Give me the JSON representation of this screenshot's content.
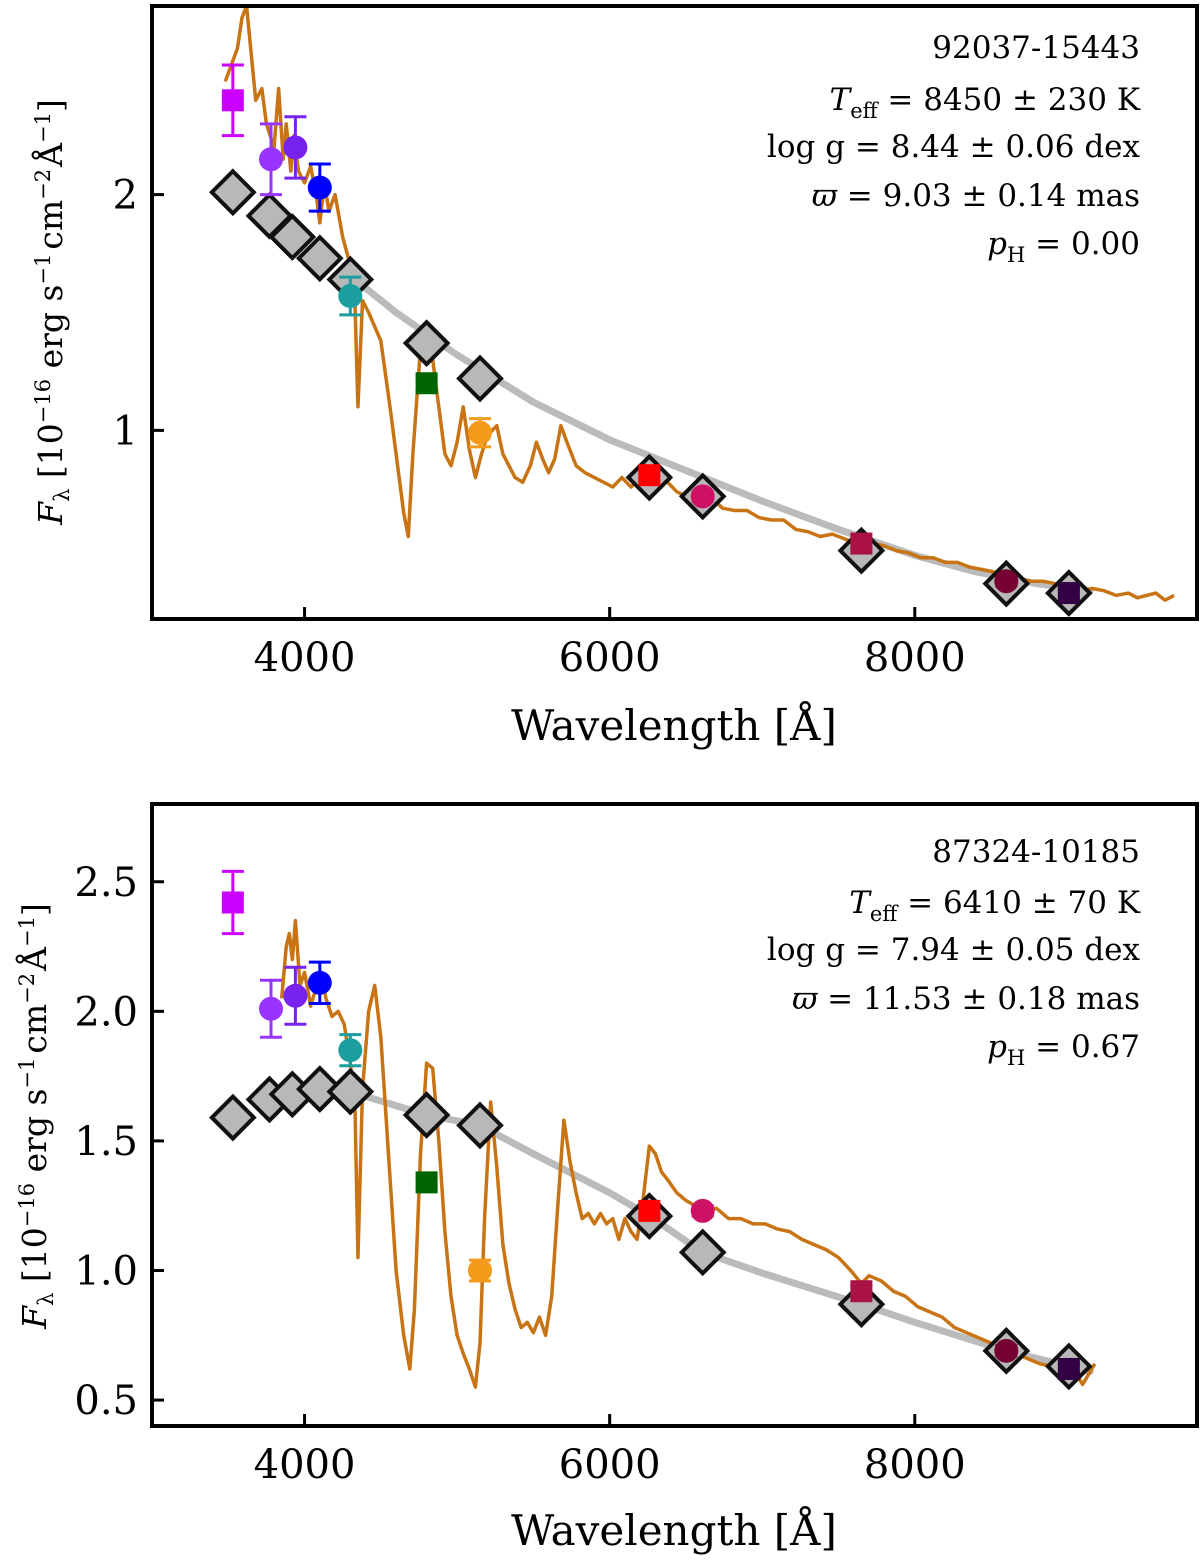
{
  "chart_data": [
    {
      "type": "scatter",
      "id": "top",
      "annotation": {
        "name": "92037-15443",
        "teff": "8450 ± 230 K",
        "logg": "8.44 ± 0.06 dex",
        "plx": "9.03 ± 0.14 mas",
        "ph": "0.00"
      },
      "xlabel": "Wavelength [Å]",
      "ylabel": {
        "main": "F",
        "sub": "λ",
        "bracket": " [10",
        "exp": "−16",
        "units": " erg s",
        "e1": "−1",
        "cm": "cm",
        "e2": "−2",
        "A": "Å",
        "e3": "−1",
        "close": "]"
      },
      "xlim": [
        3000,
        9850
      ],
      "ylim": [
        0.2,
        2.8
      ],
      "xticks": [
        4000,
        6000,
        8000
      ],
      "xtick_labels": [
        "4000",
        "6000",
        "8000"
      ],
      "yticks": [
        1,
        2
      ],
      "ytick_labels": [
        "1",
        "2"
      ],
      "spectrum": [
        [
          3480,
          2.48
        ],
        [
          3560,
          2.62
        ],
        [
          3590,
          2.75
        ],
        [
          3620,
          2.8
        ],
        [
          3650,
          2.6
        ],
        [
          3680,
          2.4
        ],
        [
          3720,
          2.45
        ],
        [
          3750,
          2.3
        ],
        [
          3800,
          2.2
        ],
        [
          3830,
          2.45
        ],
        [
          3860,
          2.15
        ],
        [
          3880,
          2.3
        ],
        [
          3910,
          2.1
        ],
        [
          3930,
          2.25
        ],
        [
          3960,
          2.1
        ],
        [
          4000,
          2.05
        ],
        [
          4040,
          2.12
        ],
        [
          4080,
          1.98
        ],
        [
          4100,
          1.88
        ],
        [
          4130,
          2.05
        ],
        [
          4160,
          1.93
        ],
        [
          4200,
          2.0
        ],
        [
          4250,
          1.82
        ],
        [
          4300,
          1.7
        ],
        [
          4330,
          1.55
        ],
        [
          4350,
          1.1
        ],
        [
          4380,
          1.55
        ],
        [
          4420,
          1.5
        ],
        [
          4500,
          1.38
        ],
        [
          4560,
          1.1
        ],
        [
          4610,
          0.85
        ],
        [
          4650,
          0.65
        ],
        [
          4680,
          0.55
        ],
        [
          4710,
          0.9
        ],
        [
          4760,
          1.35
        ],
        [
          4800,
          1.38
        ],
        [
          4840,
          1.3
        ],
        [
          4880,
          1.1
        ],
        [
          4920,
          0.9
        ],
        [
          4960,
          0.85
        ],
        [
          5000,
          0.95
        ],
        [
          5040,
          1.1
        ],
        [
          5080,
          0.92
        ],
        [
          5120,
          0.8
        ],
        [
          5160,
          0.9
        ],
        [
          5200,
          0.98
        ],
        [
          5260,
          1.02
        ],
        [
          5300,
          0.9
        ],
        [
          5380,
          0.8
        ],
        [
          5430,
          0.78
        ],
        [
          5480,
          0.85
        ],
        [
          5520,
          0.95
        ],
        [
          5560,
          0.88
        ],
        [
          5600,
          0.82
        ],
        [
          5640,
          0.88
        ],
        [
          5680,
          1.02
        ],
        [
          5720,
          0.95
        ],
        [
          5780,
          0.85
        ],
        [
          5840,
          0.82
        ],
        [
          5900,
          0.8
        ],
        [
          5960,
          0.78
        ],
        [
          6020,
          0.76
        ],
        [
          6080,
          0.8
        ],
        [
          6140,
          0.76
        ],
        [
          6200,
          0.8
        ],
        [
          6260,
          0.76
        ],
        [
          6320,
          0.8
        ],
        [
          6380,
          0.78
        ],
        [
          6440,
          0.74
        ],
        [
          6500,
          0.72
        ],
        [
          6560,
          0.73
        ],
        [
          6600,
          0.7
        ],
        [
          6660,
          0.72
        ],
        [
          6740,
          0.67
        ],
        [
          6820,
          0.66
        ],
        [
          6900,
          0.66
        ],
        [
          6980,
          0.63
        ],
        [
          7060,
          0.62
        ],
        [
          7140,
          0.62
        ],
        [
          7220,
          0.58
        ],
        [
          7300,
          0.57
        ],
        [
          7380,
          0.55
        ],
        [
          7460,
          0.56
        ],
        [
          7540,
          0.54
        ],
        [
          7620,
          0.52
        ],
        [
          7700,
          0.48
        ],
        [
          7740,
          0.52
        ],
        [
          7800,
          0.51
        ],
        [
          7880,
          0.49
        ],
        [
          7960,
          0.48
        ],
        [
          8040,
          0.46
        ],
        [
          8120,
          0.46
        ],
        [
          8200,
          0.44
        ],
        [
          8280,
          0.44
        ],
        [
          8360,
          0.42
        ],
        [
          8440,
          0.41
        ],
        [
          8520,
          0.4
        ],
        [
          8600,
          0.38
        ],
        [
          8680,
          0.37
        ],
        [
          8760,
          0.36
        ],
        [
          8840,
          0.36
        ],
        [
          8920,
          0.35
        ],
        [
          9000,
          0.33
        ],
        [
          9080,
          0.31
        ],
        [
          9160,
          0.33
        ],
        [
          9240,
          0.32
        ],
        [
          9320,
          0.3
        ],
        [
          9400,
          0.31
        ],
        [
          9460,
          0.29
        ],
        [
          9520,
          0.3
        ],
        [
          9580,
          0.31
        ],
        [
          9640,
          0.28
        ],
        [
          9700,
          0.3
        ]
      ],
      "model_curve": [
        [
          4350,
          1.63
        ],
        [
          4600,
          1.5
        ],
        [
          5000,
          1.32
        ],
        [
          5500,
          1.12
        ],
        [
          6000,
          0.96
        ],
        [
          6500,
          0.83
        ],
        [
          7000,
          0.7
        ],
        [
          7500,
          0.58
        ],
        [
          8000,
          0.47
        ],
        [
          8400,
          0.4
        ],
        [
          8800,
          0.35
        ],
        [
          9150,
          0.32
        ]
      ],
      "model_points": [
        [
          3530,
          2.01
        ],
        [
          3770,
          1.91
        ],
        [
          3920,
          1.82
        ],
        [
          4100,
          1.73
        ],
        [
          4300,
          1.64
        ],
        [
          4800,
          1.37
        ],
        [
          5150,
          1.22
        ],
        [
          6260,
          0.8
        ],
        [
          6610,
          0.72
        ],
        [
          7650,
          0.49
        ],
        [
          8600,
          0.35
        ],
        [
          9010,
          0.31
        ]
      ],
      "observations": [
        {
          "x": 3530,
          "y": 2.4,
          "err": 0.15,
          "marker": "square",
          "color": "#cc00ff"
        },
        {
          "x": 3780,
          "y": 2.15,
          "err": 0.15,
          "marker": "circle",
          "color": "#9933ff"
        },
        {
          "x": 3940,
          "y": 2.2,
          "err": 0.13,
          "marker": "circle",
          "color": "#7722ee"
        },
        {
          "x": 4100,
          "y": 2.03,
          "err": 0.1,
          "marker": "circle",
          "color": "#0000ff"
        },
        {
          "x": 4300,
          "y": 1.57,
          "err": 0.08,
          "marker": "circle",
          "color": "#1b9e9e"
        },
        {
          "x": 4800,
          "y": 1.2,
          "err": 0.03,
          "marker": "square",
          "color": "#006400"
        },
        {
          "x": 5150,
          "y": 0.99,
          "err": 0.06,
          "marker": "circle",
          "color": "#f59a1a"
        },
        {
          "x": 6260,
          "y": 0.81,
          "err": 0.02,
          "marker": "square",
          "color": "#ff0000"
        },
        {
          "x": 6610,
          "y": 0.72,
          "err": 0.02,
          "marker": "circle",
          "color": "#cc1166"
        },
        {
          "x": 7650,
          "y": 0.52,
          "err": 0.02,
          "marker": "square",
          "color": "#aa1144"
        },
        {
          "x": 8600,
          "y": 0.36,
          "err": 0.02,
          "marker": "circle",
          "color": "#770033"
        },
        {
          "x": 9010,
          "y": 0.31,
          "err": 0.02,
          "marker": "square",
          "color": "#330044"
        }
      ]
    },
    {
      "type": "scatter",
      "id": "bottom",
      "annotation": {
        "name": "87324-10185",
        "teff": "6410 ± 70 K",
        "logg": "7.94 ± 0.05 dex",
        "plx": "11.53 ± 0.18 mas",
        "ph": "0.67"
      },
      "xlabel": "Wavelength [Å]",
      "ylabel": {
        "main": "F",
        "sub": "λ",
        "bracket": " [10",
        "exp": "−16",
        "units": " erg s",
        "e1": "−1",
        "cm": "cm",
        "e2": "−2",
        "A": "Å",
        "e3": "−1",
        "close": "]"
      },
      "xlim": [
        3000,
        9850
      ],
      "ylim": [
        0.4,
        2.8
      ],
      "xticks": [
        4000,
        6000,
        8000
      ],
      "xtick_labels": [
        "4000",
        "6000",
        "8000"
      ],
      "yticks": [
        0.5,
        1.0,
        1.5,
        2.0,
        2.5
      ],
      "ytick_labels": [
        "0.5",
        "1.0",
        "1.5",
        "2.0",
        "2.5"
      ],
      "spectrum": [
        [
          3850,
          2.05
        ],
        [
          3880,
          2.25
        ],
        [
          3900,
          2.3
        ],
        [
          3920,
          2.2
        ],
        [
          3940,
          2.35
        ],
        [
          3970,
          2.1
        ],
        [
          4000,
          2.15
        ],
        [
          4040,
          2.02
        ],
        [
          4080,
          2.1
        ],
        [
          4110,
          2.15
        ],
        [
          4140,
          2.05
        ],
        [
          4180,
          1.98
        ],
        [
          4220,
          2.0
        ],
        [
          4260,
          1.95
        ],
        [
          4300,
          1.8
        ],
        [
          4330,
          1.65
        ],
        [
          4350,
          1.05
        ],
        [
          4380,
          1.7
        ],
        [
          4420,
          2.0
        ],
        [
          4460,
          2.1
        ],
        [
          4500,
          1.9
        ],
        [
          4550,
          1.45
        ],
        [
          4600,
          1.0
        ],
        [
          4650,
          0.75
        ],
        [
          4690,
          0.62
        ],
        [
          4720,
          0.85
        ],
        [
          4760,
          1.45
        ],
        [
          4800,
          1.8
        ],
        [
          4840,
          1.78
        ],
        [
          4880,
          1.5
        ],
        [
          4920,
          1.15
        ],
        [
          4960,
          0.9
        ],
        [
          5000,
          0.75
        ],
        [
          5040,
          0.68
        ],
        [
          5080,
          0.62
        ],
        [
          5120,
          0.55
        ],
        [
          5150,
          0.72
        ],
        [
          5180,
          1.2
        ],
        [
          5220,
          1.65
        ],
        [
          5260,
          1.4
        ],
        [
          5300,
          1.1
        ],
        [
          5340,
          0.95
        ],
        [
          5380,
          0.85
        ],
        [
          5420,
          0.78
        ],
        [
          5460,
          0.8
        ],
        [
          5500,
          0.76
        ],
        [
          5540,
          0.82
        ],
        [
          5580,
          0.75
        ],
        [
          5620,
          0.9
        ],
        [
          5660,
          1.25
        ],
        [
          5700,
          1.58
        ],
        [
          5740,
          1.42
        ],
        [
          5780,
          1.3
        ],
        [
          5820,
          1.2
        ],
        [
          5860,
          1.22
        ],
        [
          5900,
          1.18
        ],
        [
          5940,
          1.22
        ],
        [
          5980,
          1.18
        ],
        [
          6020,
          1.2
        ],
        [
          6060,
          1.12
        ],
        [
          6100,
          1.2
        ],
        [
          6140,
          1.15
        ],
        [
          6180,
          1.12
        ],
        [
          6220,
          1.28
        ],
        [
          6260,
          1.48
        ],
        [
          6300,
          1.45
        ],
        [
          6340,
          1.38
        ],
        [
          6380,
          1.35
        ],
        [
          6440,
          1.3
        ],
        [
          6500,
          1.27
        ],
        [
          6560,
          1.25
        ],
        [
          6620,
          1.23
        ],
        [
          6700,
          1.24
        ],
        [
          6780,
          1.2
        ],
        [
          6860,
          1.2
        ],
        [
          6940,
          1.18
        ],
        [
          7020,
          1.18
        ],
        [
          7100,
          1.16
        ],
        [
          7180,
          1.15
        ],
        [
          7260,
          1.12
        ],
        [
          7340,
          1.1
        ],
        [
          7420,
          1.08
        ],
        [
          7500,
          1.05
        ],
        [
          7580,
          1.0
        ],
        [
          7650,
          0.95
        ],
        [
          7700,
          0.98
        ],
        [
          7780,
          0.96
        ],
        [
          7860,
          0.92
        ],
        [
          7940,
          0.9
        ],
        [
          8020,
          0.86
        ],
        [
          8100,
          0.84
        ],
        [
          8180,
          0.82
        ],
        [
          8260,
          0.78
        ],
        [
          8340,
          0.76
        ],
        [
          8420,
          0.74
        ],
        [
          8500,
          0.72
        ],
        [
          8580,
          0.7
        ],
        [
          8660,
          0.68
        ],
        [
          8740,
          0.66
        ],
        [
          8820,
          0.64
        ],
        [
          8900,
          0.63
        ],
        [
          8980,
          0.62
        ],
        [
          9060,
          0.6
        ],
        [
          9100,
          0.56
        ],
        [
          9140,
          0.6
        ],
        [
          9180,
          0.64
        ]
      ],
      "model_curve": [
        [
          4300,
          1.69
        ],
        [
          4800,
          1.6
        ],
        [
          5150,
          1.56
        ],
        [
          5500,
          1.45
        ],
        [
          6000,
          1.3
        ],
        [
          6260,
          1.21
        ],
        [
          6610,
          1.07
        ],
        [
          7000,
          0.99
        ],
        [
          7650,
          0.87
        ],
        [
          8000,
          0.8
        ],
        [
          8600,
          0.69
        ],
        [
          9010,
          0.63
        ],
        [
          9150,
          0.61
        ]
      ],
      "model_points": [
        [
          3530,
          1.59
        ],
        [
          3770,
          1.66
        ],
        [
          3920,
          1.68
        ],
        [
          4100,
          1.7
        ],
        [
          4300,
          1.69
        ],
        [
          4800,
          1.6
        ],
        [
          5150,
          1.56
        ],
        [
          6260,
          1.21
        ],
        [
          6610,
          1.07
        ],
        [
          7650,
          0.87
        ],
        [
          8600,
          0.69
        ],
        [
          9010,
          0.63
        ]
      ],
      "observations": [
        {
          "x": 3530,
          "y": 2.42,
          "err": 0.12,
          "marker": "square",
          "color": "#cc00ff"
        },
        {
          "x": 3780,
          "y": 2.01,
          "err": 0.11,
          "marker": "circle",
          "color": "#9933ff"
        },
        {
          "x": 3940,
          "y": 2.06,
          "err": 0.11,
          "marker": "circle",
          "color": "#7722ee"
        },
        {
          "x": 4100,
          "y": 2.11,
          "err": 0.08,
          "marker": "circle",
          "color": "#0000ff"
        },
        {
          "x": 4300,
          "y": 1.85,
          "err": 0.06,
          "marker": "circle",
          "color": "#1b9e9e"
        },
        {
          "x": 4800,
          "y": 1.34,
          "err": 0.02,
          "marker": "square",
          "color": "#006400"
        },
        {
          "x": 5150,
          "y": 1.0,
          "err": 0.04,
          "marker": "circle",
          "color": "#f59a1a"
        },
        {
          "x": 6260,
          "y": 1.23,
          "err": 0.02,
          "marker": "square",
          "color": "#ff0000"
        },
        {
          "x": 6610,
          "y": 1.23,
          "err": 0.02,
          "marker": "circle",
          "color": "#cc1166"
        },
        {
          "x": 7650,
          "y": 0.92,
          "err": 0.02,
          "marker": "square",
          "color": "#aa1144"
        },
        {
          "x": 8600,
          "y": 0.69,
          "err": 0.02,
          "marker": "circle",
          "color": "#770033"
        },
        {
          "x": 9010,
          "y": 0.62,
          "err": 0.02,
          "marker": "square",
          "color": "#330044"
        }
      ]
    }
  ],
  "colors": {
    "spectrum": "#c87414",
    "model_curve": "#bbbbbb",
    "model_marker_fill": "#b8b8b8",
    "model_marker_edge": "#111111"
  }
}
